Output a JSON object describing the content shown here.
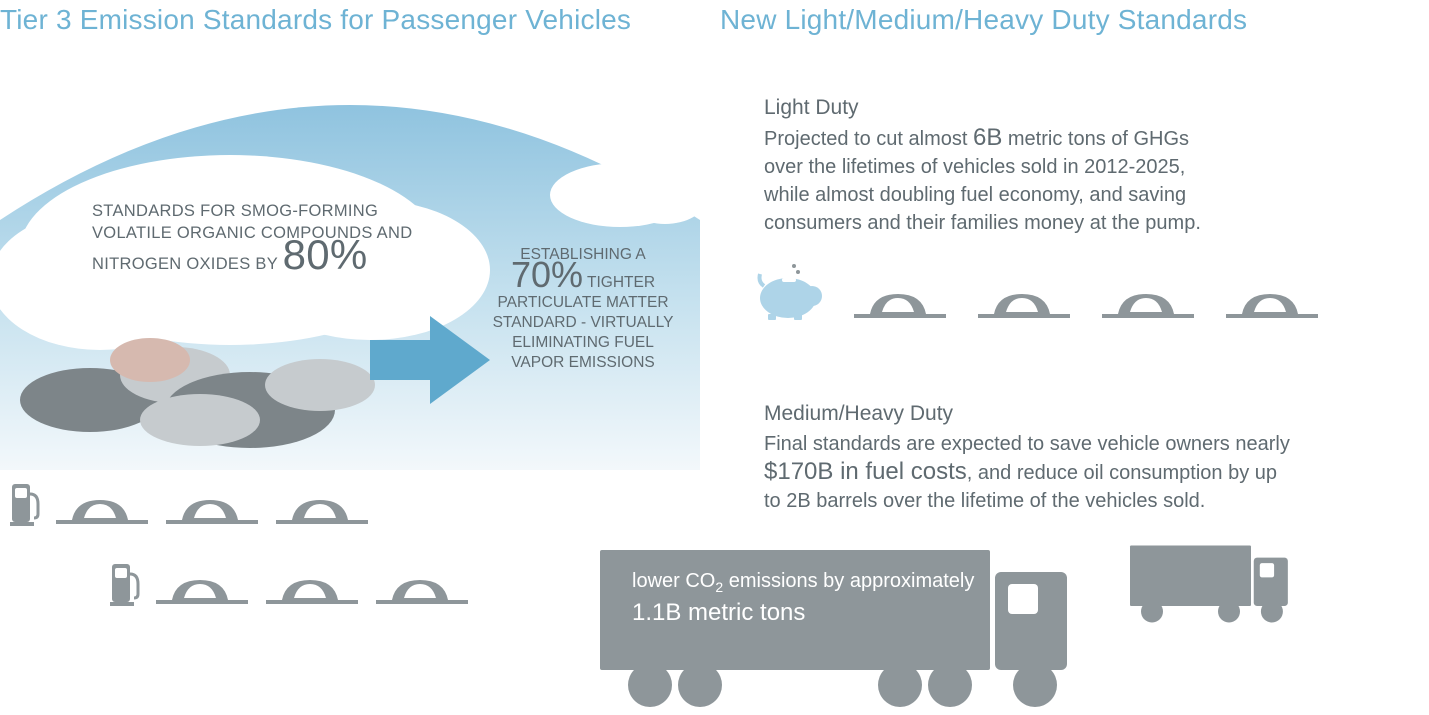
{
  "colors": {
    "title": "#6eb3d4",
    "text": "#5f6a70",
    "skyTop": "#8fc3df",
    "skyMid": "#c7e2ef",
    "skyBottom": "#f3f8fb",
    "cloudWhite": "#ffffff",
    "smogDark": "#7d8589",
    "smogLight": "#c6cbce",
    "smogTan": "#d6b9af",
    "arrowFill": "#5fa9cd",
    "carGray": "#8e969a",
    "pigBlue": "#aed4e8",
    "truckGray": "#8e969a",
    "truckTextBg": "#8e969a",
    "white": "#ffffff"
  },
  "left": {
    "title": "Tier 3 Emission Standards for Passenger Vehicles",
    "smog": {
      "line1": "STANDARDS FOR SMOG-FORMING",
      "line2": "VOLATILE ORGANIC COMPOUNDS AND",
      "line3_prefix": "NITROGEN OXIDES BY",
      "pct": "80%"
    },
    "arrow": {
      "line1": "ESTABLISHING A",
      "pct": "70%",
      "line2_suffix": "TIGHTER",
      "line3": "PARTICULATE MATTER",
      "line4": "STANDARD - VIRTUALLY",
      "line5": "ELIMINATING FUEL",
      "line6": "VAPOR EMISSIONS"
    }
  },
  "right": {
    "title": "New Light/Medium/Heavy Duty Standards",
    "light": {
      "heading": "Light Duty",
      "l1_a": "Projected to cut almost ",
      "l1_b": "6B",
      "l1_c": " metric tons of GHGs",
      "l2": "over the lifetimes of vehicles sold in 2012-2025,",
      "l3": "while almost doubling fuel economy, and saving",
      "l4": "consumers and their families money at the pump."
    },
    "medium": {
      "heading": "Medium/Heavy Duty",
      "l1": "Final standards are expected to save vehicle owners nearly",
      "l2_a": "$170B in fuel costs",
      "l2_b": ", and reduce oil consumption by up",
      "l3": "to 2B barrels over the lifetime of the vehicles sold."
    },
    "truck": {
      "l1_a": "lower CO",
      "l1_sub": "2",
      "l1_b": " emissions by approximately",
      "l2": "1.1B metric tons"
    }
  },
  "iconCounts": {
    "carsRow1": 3,
    "carsRow2": 3,
    "lightCars": 4
  }
}
